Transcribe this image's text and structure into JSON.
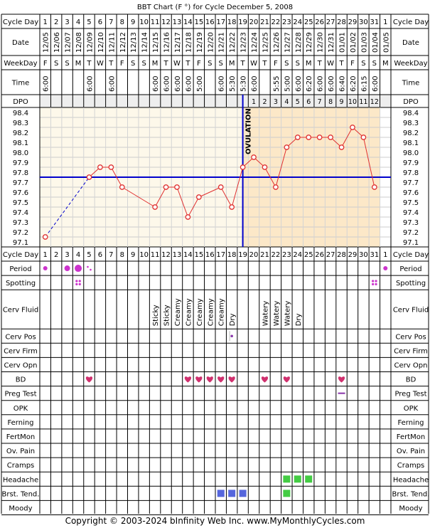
{
  "title": "BBT Chart (F °) for Cycle December 5, 2008",
  "footer": "Copyright © 2003-2024 bInfinity Web Inc.    www.MyMonthlyCycles.com",
  "labels": {
    "cycle_day": "Cycle Day",
    "date": "Date",
    "weekday": "WeekDay",
    "time": "Time",
    "dpo": "DPO",
    "ovulation": "OVULATION"
  },
  "colors": {
    "pre_ovulation_bg": "#fdf8ea",
    "post_ovulation_bg": "#fce8c8",
    "coverline": "#0000cc",
    "temp_line": "#e03030",
    "heart": "#d0306e",
    "period_dot": "#cc33cc",
    "symptom_green": "#44cc44",
    "symptom_blue": "#5566dd",
    "preg_test": "#8833aa"
  },
  "days": [
    {
      "cd": "1",
      "date": "12/05",
      "wd": "F",
      "time": "6:00",
      "dpo": ""
    },
    {
      "cd": "2",
      "date": "12/06",
      "wd": "S",
      "time": "",
      "dpo": ""
    },
    {
      "cd": "3",
      "date": "12/07",
      "wd": "S",
      "time": "",
      "dpo": ""
    },
    {
      "cd": "4",
      "date": "12/08",
      "wd": "M",
      "time": "",
      "dpo": ""
    },
    {
      "cd": "5",
      "date": "12/09",
      "wd": "T",
      "time": "6:00",
      "dpo": ""
    },
    {
      "cd": "6",
      "date": "12/10",
      "wd": "W",
      "time": "",
      "dpo": ""
    },
    {
      "cd": "7",
      "date": "12/11",
      "wd": "T",
      "time": "6:00",
      "dpo": ""
    },
    {
      "cd": "8",
      "date": "12/12",
      "wd": "F",
      "time": "",
      "dpo": ""
    },
    {
      "cd": "9",
      "date": "12/13",
      "wd": "S",
      "time": "",
      "dpo": ""
    },
    {
      "cd": "10",
      "date": "12/14",
      "wd": "S",
      "time": "",
      "dpo": ""
    },
    {
      "cd": "11",
      "date": "12/15",
      "wd": "M",
      "time": "6:00",
      "dpo": ""
    },
    {
      "cd": "12",
      "date": "12/16",
      "wd": "T",
      "time": "6:00",
      "dpo": ""
    },
    {
      "cd": "13",
      "date": "12/17",
      "wd": "W",
      "time": "6:00",
      "dpo": ""
    },
    {
      "cd": "14",
      "date": "12/18",
      "wd": "T",
      "time": "6:00",
      "dpo": ""
    },
    {
      "cd": "15",
      "date": "12/19",
      "wd": "F",
      "time": "5:00",
      "dpo": ""
    },
    {
      "cd": "16",
      "date": "12/20",
      "wd": "S",
      "time": "",
      "dpo": ""
    },
    {
      "cd": "17",
      "date": "12/21",
      "wd": "S",
      "time": "6:00",
      "dpo": ""
    },
    {
      "cd": "18",
      "date": "12/22",
      "wd": "M",
      "time": "5:30",
      "dpo": ""
    },
    {
      "cd": "19",
      "date": "12/23",
      "wd": "T",
      "time": "5:30",
      "dpo": ""
    },
    {
      "cd": "20",
      "date": "12/24",
      "wd": "W",
      "time": "6:00",
      "dpo": "1"
    },
    {
      "cd": "21",
      "date": "12/25",
      "wd": "T",
      "time": "",
      "dpo": "2"
    },
    {
      "cd": "22",
      "date": "12/26",
      "wd": "F",
      "time": "5:55",
      "dpo": "3"
    },
    {
      "cd": "23",
      "date": "12/27",
      "wd": "S",
      "time": "5:00",
      "dpo": "4"
    },
    {
      "cd": "24",
      "date": "12/28",
      "wd": "S",
      "time": "6:00",
      "dpo": "5"
    },
    {
      "cd": "25",
      "date": "12/29",
      "wd": "M",
      "time": "6:20",
      "dpo": "6"
    },
    {
      "cd": "26",
      "date": "12/30",
      "wd": "T",
      "time": "6:00",
      "dpo": "7"
    },
    {
      "cd": "27",
      "date": "12/31",
      "wd": "W",
      "time": "6:00",
      "dpo": "8"
    },
    {
      "cd": "28",
      "date": "01/01",
      "wd": "T",
      "time": "6:40",
      "dpo": "9"
    },
    {
      "cd": "29",
      "date": "01/02",
      "wd": "F",
      "time": "6:20",
      "dpo": "10"
    },
    {
      "cd": "30",
      "date": "01/03",
      "wd": "S",
      "time": "6:15",
      "dpo": "11"
    },
    {
      "cd": "31",
      "date": "01/04",
      "wd": "S",
      "time": "6:00",
      "dpo": "12"
    },
    {
      "cd": "1",
      "date": "01/05",
      "wd": "M",
      "time": "",
      "dpo": ""
    }
  ],
  "chart_data": {
    "type": "line",
    "title": "BBT Chart (F °) for Cycle December 5, 2008",
    "xlabel": "Cycle Day",
    "ylabel": "",
    "ylim": [
      97.1,
      98.4
    ],
    "yticks": [
      "98.4",
      "98.3",
      "98.2",
      "98.1",
      "98.0",
      "97.9",
      "97.8",
      "97.7",
      "97.6",
      "97.5",
      "97.4",
      "97.3",
      "97.2",
      "97.1"
    ],
    "x": [
      1,
      5,
      6,
      7,
      8,
      11,
      12,
      13,
      14,
      15,
      17,
      18,
      19,
      20,
      21,
      22,
      23,
      24,
      25,
      26,
      27,
      28,
      29,
      30,
      31
    ],
    "y": [
      97.2,
      97.8,
      97.9,
      97.9,
      97.7,
      97.5,
      97.7,
      97.7,
      97.4,
      97.6,
      97.7,
      97.5,
      97.9,
      98.0,
      97.9,
      97.7,
      98.1,
      98.2,
      98.2,
      98.2,
      98.2,
      98.1,
      98.3,
      98.2,
      97.7
    ],
    "dashed_segments": [
      [
        1,
        5
      ]
    ],
    "coverline": 97.8,
    "ovulation_day": 19,
    "grid": true
  },
  "symptoms": [
    {
      "label": "Period",
      "marks": [
        {
          "col": 1,
          "kind": "dot",
          "size": 2
        },
        {
          "col": 3,
          "kind": "dot",
          "size": 3
        },
        {
          "col": 4,
          "kind": "dot",
          "size": 4
        },
        {
          "col": 5,
          "kind": "dot",
          "size": 1
        },
        {
          "col": 32,
          "kind": "dot",
          "size": 2
        }
      ]
    },
    {
      "label": "Spotting",
      "marks": [
        {
          "col": 4,
          "kind": "spot"
        },
        {
          "col": 31,
          "kind": "spot"
        }
      ]
    },
    {
      "label": "Cerv Fluid",
      "marks": [
        {
          "col": 11,
          "kind": "text",
          "text": "Sticky"
        },
        {
          "col": 12,
          "kind": "text",
          "text": "Sticky"
        },
        {
          "col": 13,
          "kind": "text",
          "text": "Creamy"
        },
        {
          "col": 14,
          "kind": "text",
          "text": "Creamy"
        },
        {
          "col": 15,
          "kind": "text",
          "text": "Creamy"
        },
        {
          "col": 16,
          "kind": "text",
          "text": "Creamy"
        },
        {
          "col": 17,
          "kind": "text",
          "text": "Creamy"
        },
        {
          "col": 18,
          "kind": "text",
          "text": "Dry"
        },
        {
          "col": 21,
          "kind": "text",
          "text": "Watery"
        },
        {
          "col": 22,
          "kind": "text",
          "text": "Watery"
        },
        {
          "col": 23,
          "kind": "text",
          "text": "Watery"
        },
        {
          "col": 24,
          "kind": "text",
          "text": "Dry"
        }
      ]
    },
    {
      "label": "Cerv Pos",
      "marks": [
        {
          "col": 18,
          "kind": "cervpos"
        }
      ]
    },
    {
      "label": "Cerv Firm",
      "marks": []
    },
    {
      "label": "Cerv Opn",
      "marks": []
    },
    {
      "label": "BD",
      "marks": [
        {
          "col": 5,
          "kind": "heart"
        },
        {
          "col": 14,
          "kind": "heart"
        },
        {
          "col": 15,
          "kind": "heart"
        },
        {
          "col": 16,
          "kind": "heart"
        },
        {
          "col": 17,
          "kind": "heart"
        },
        {
          "col": 18,
          "kind": "heart"
        },
        {
          "col": 21,
          "kind": "heart"
        },
        {
          "col": 23,
          "kind": "heart"
        },
        {
          "col": 28,
          "kind": "heart"
        }
      ]
    },
    {
      "label": "Preg Test",
      "marks": [
        {
          "col": 28,
          "kind": "negative"
        }
      ]
    },
    {
      "label": "OPK",
      "marks": []
    },
    {
      "label": "Ferning",
      "marks": []
    },
    {
      "label": "FertMon",
      "marks": []
    },
    {
      "label": "Ov. Pain",
      "marks": []
    },
    {
      "label": "Cramps",
      "marks": []
    },
    {
      "label": "Headache",
      "marks": [
        {
          "col": 23,
          "kind": "green"
        },
        {
          "col": 24,
          "kind": "green"
        },
        {
          "col": 25,
          "kind": "green"
        }
      ]
    },
    {
      "label": "Brst. Tend.",
      "marks": [
        {
          "col": 17,
          "kind": "blue"
        },
        {
          "col": 18,
          "kind": "blue"
        },
        {
          "col": 19,
          "kind": "blue"
        },
        {
          "col": 23,
          "kind": "green"
        }
      ]
    },
    {
      "label": "Moody",
      "marks": []
    }
  ]
}
